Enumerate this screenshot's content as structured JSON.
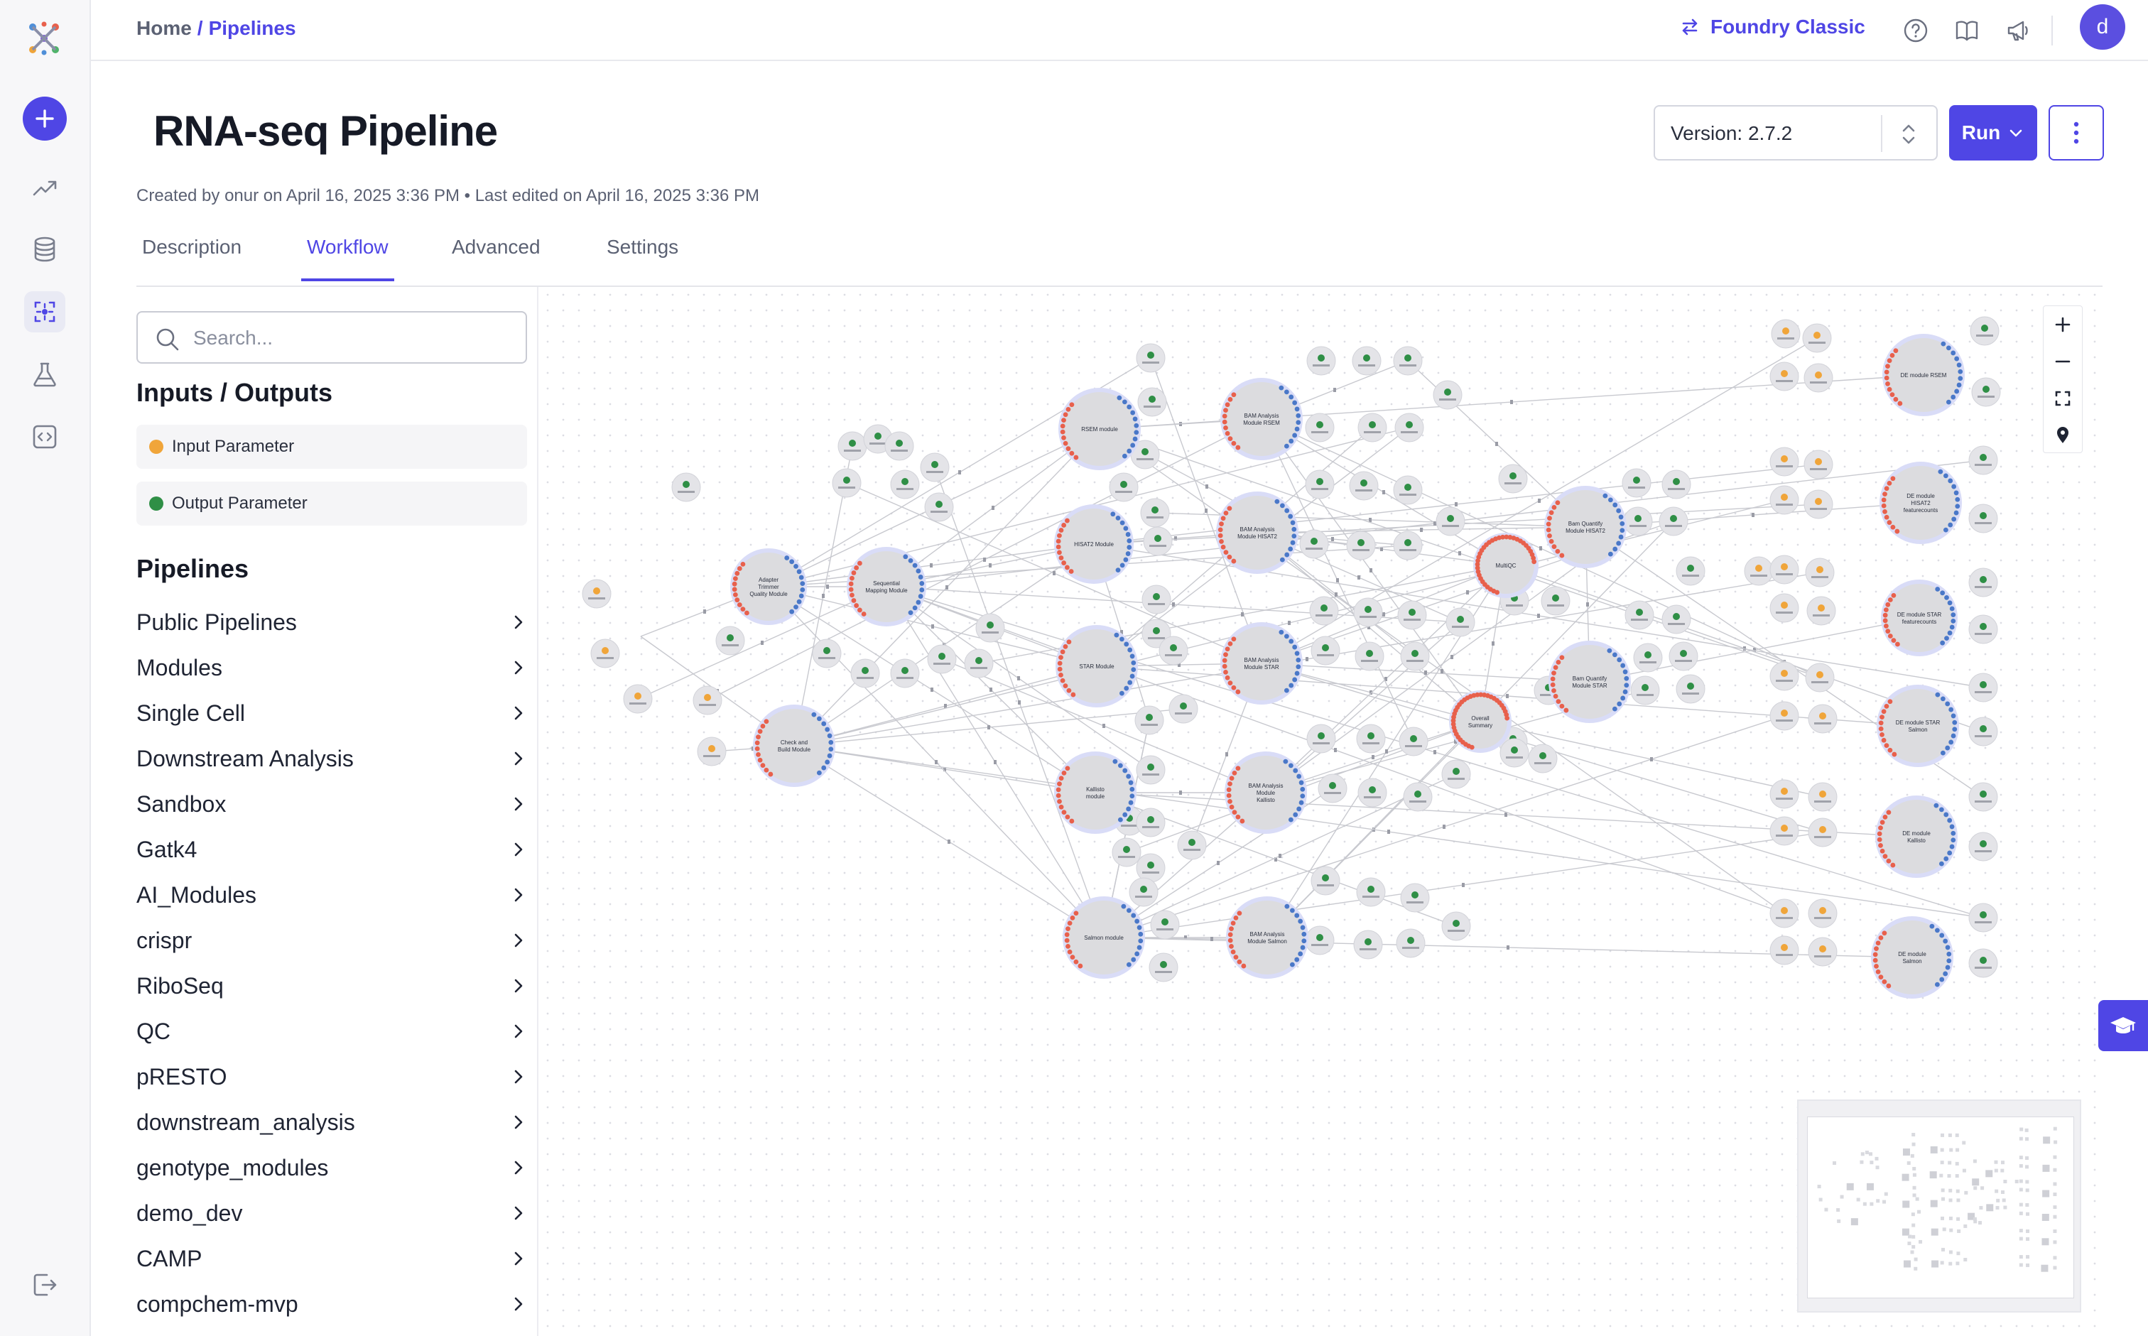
{
  "topbar": {
    "breadcrumb": [
      "Home",
      "Pipelines"
    ],
    "breadcrumb_sep": "/",
    "switch_label": "Foundry Classic",
    "user_initial": "d"
  },
  "header": {
    "title": "RNA-seq Pipeline",
    "meta": "Created by onur on April 16, 2025 3:36 PM • Last edited on April 16, 2025 3:36 PM",
    "version_label": "Version: 2.7.2",
    "run_label": "Run"
  },
  "tabs": [
    {
      "label": "Description",
      "active": false
    },
    {
      "label": "Workflow",
      "active": true
    },
    {
      "label": "Advanced",
      "active": false
    },
    {
      "label": "Settings",
      "active": false
    }
  ],
  "sidebar": {
    "search_placeholder": "Search...",
    "io_title": "Inputs / Outputs",
    "input_param": "Input Parameter",
    "output_param": "Output Parameter",
    "pipelines_title": "Pipelines",
    "pipelines": [
      "Public Pipelines",
      "Modules",
      "Single Cell",
      "Downstream Analysis",
      "Sandbox",
      "Gatk4",
      "AI_Modules",
      "crispr",
      "RiboSeq",
      "QC",
      "pRESTO",
      "downstream_analysis",
      "genotype_modules",
      "demo_dev",
      "CAMP",
      "compchem-mvp"
    ]
  },
  "colors": {
    "accent": "#4f46e5",
    "input_param": "#f0a53a",
    "output_param": "#2f8f46",
    "node_in_port": "#e8604c",
    "node_out_port": "#4a78c8"
  },
  "icons": {
    "rail": [
      "plus-icon",
      "trending-icon",
      "database-icon",
      "workflow-icon",
      "flask-icon",
      "code-icon",
      "logout-icon"
    ],
    "top": [
      "swap-icon",
      "help-icon",
      "book-icon",
      "megaphone-icon"
    ],
    "zoom": [
      "zoom-in-icon",
      "zoom-out-icon",
      "fit-view-icon",
      "locate-icon"
    ]
  },
  "workflow": {
    "modules": [
      {
        "label": "Adapter Trimmer Quality Module"
      },
      {
        "label": "Sequential Mapping Module"
      },
      {
        "label": "Check and Build Module"
      },
      {
        "label": "RSEM module"
      },
      {
        "label": "HISAT2 Module"
      },
      {
        "label": "STAR Module"
      },
      {
        "label": "Kallisto module"
      },
      {
        "label": "Salmon module"
      },
      {
        "label": "BAM Analysis Module RSEM"
      },
      {
        "label": "BAM Analysis Module HISAT2"
      },
      {
        "label": "BAM Analysis Module STAR"
      },
      {
        "label": "BAM Analysis Module Kallisto"
      },
      {
        "label": "BAM Analysis Module Salmon"
      },
      {
        "label": "MultiQC"
      },
      {
        "label": "Overall Summary"
      },
      {
        "label": "Bam Quantify Module HISAT2"
      },
      {
        "label": "Bam Quantify Module STAR"
      },
      {
        "label": "DE module RSEM"
      },
      {
        "label": "DE module HISAT2 featurecounts"
      },
      {
        "label": "DE module STAR featurecounts"
      },
      {
        "label": "DE module STAR Salmon"
      },
      {
        "label": "DE module Kallisto"
      },
      {
        "label": "DE module Salmon"
      }
    ]
  }
}
